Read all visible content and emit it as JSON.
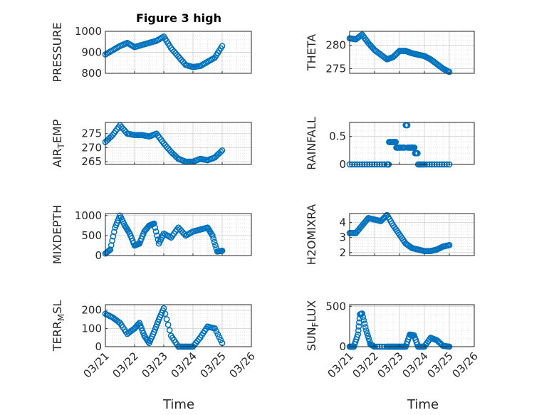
{
  "figure": {
    "title": "Figure 3 high",
    "date_tick_labels": [
      "03/21",
      "03/22",
      "03/23",
      "03/24",
      "03/25",
      "03/26"
    ],
    "time_label": "Time",
    "marker_color": "#0072BD",
    "grid_color": "#e0e0e0"
  },
  "chart_data": [
    {
      "type": "scatter",
      "ylabel": "PRESSURE",
      "xlim": [
        "2024-03-21",
        "2024-03-26"
      ],
      "ylim": [
        800,
        1000
      ],
      "yticks": [
        800,
        900,
        1000
      ],
      "xtick_labels_shown": false,
      "x": [
        "2024-03-21 00:00",
        "2024-03-21 06:00",
        "2024-03-21 12:00",
        "2024-03-21 18:00",
        "2024-03-22 00:00",
        "2024-03-22 06:00",
        "2024-03-22 12:00",
        "2024-03-22 18:00",
        "2024-03-23 00:00",
        "2024-03-23 06:00",
        "2024-03-23 12:00",
        "2024-03-23 18:00",
        "2024-03-24 00:00",
        "2024-03-24 06:00",
        "2024-03-24 12:00",
        "2024-03-24 18:00",
        "2024-03-25 00:00"
      ],
      "values": [
        890,
        910,
        930,
        945,
        925,
        935,
        945,
        955,
        975,
        920,
        880,
        840,
        830,
        835,
        855,
        875,
        930
      ]
    },
    {
      "type": "scatter",
      "ylabel": "THETA",
      "xlim": [
        "2024-03-21",
        "2024-03-26"
      ],
      "ylim": [
        274,
        283
      ],
      "yticks": [
        275,
        280
      ],
      "xtick_labels_shown": false,
      "x": [
        "2024-03-21 00:00",
        "2024-03-21 06:00",
        "2024-03-21 12:00",
        "2024-03-21 18:00",
        "2024-03-22 00:00",
        "2024-03-22 06:00",
        "2024-03-22 12:00",
        "2024-03-22 18:00",
        "2024-03-23 00:00",
        "2024-03-23 06:00",
        "2024-03-23 12:00",
        "2024-03-23 18:00",
        "2024-03-24 00:00",
        "2024-03-24 06:00",
        "2024-03-24 12:00",
        "2024-03-24 18:00",
        "2024-03-25 00:00"
      ],
      "values": [
        281.5,
        281.3,
        282.3,
        280.5,
        279,
        278,
        277,
        277.5,
        278.8,
        278.8,
        278.3,
        278,
        277.7,
        277,
        276,
        275,
        274.3
      ]
    },
    {
      "type": "scatter",
      "ylabel": "AIR_TEMP",
      "ylabel_sub": "T",
      "ylabel_parts": [
        "AIR",
        "EMP"
      ],
      "xlim": [
        "2024-03-21",
        "2024-03-26"
      ],
      "ylim": [
        264,
        279
      ],
      "yticks": [
        265,
        270,
        275
      ],
      "xtick_labels_shown": false,
      "x": [
        "2024-03-21 00:00",
        "2024-03-21 06:00",
        "2024-03-21 12:00",
        "2024-03-21 18:00",
        "2024-03-22 00:00",
        "2024-03-22 06:00",
        "2024-03-22 12:00",
        "2024-03-22 18:00",
        "2024-03-23 00:00",
        "2024-03-23 06:00",
        "2024-03-23 12:00",
        "2024-03-23 18:00",
        "2024-03-24 00:00",
        "2024-03-24 06:00",
        "2024-03-24 12:00",
        "2024-03-24 18:00",
        "2024-03-25 00:00"
      ],
      "values": [
        272,
        274.5,
        278,
        275,
        274.5,
        274.5,
        274,
        275,
        271.5,
        268.5,
        266,
        265,
        265,
        266,
        265.5,
        266.5,
        269
      ]
    },
    {
      "type": "scatter",
      "ylabel": "RAINFALL",
      "xlim": [
        "2024-03-21",
        "2024-03-26"
      ],
      "ylim": [
        0,
        0.75
      ],
      "yticks": [
        0,
        0.5
      ],
      "xtick_labels_shown": false,
      "x": [
        "2024-03-21 00:00",
        "2024-03-21 12:00",
        "2024-03-22 00:00",
        "2024-03-22 12:00",
        "2024-03-22 14:00",
        "2024-03-22 18:00",
        "2024-03-22 21:00",
        "2024-03-23 00:00",
        "2024-03-23 06:00",
        "2024-03-23 08:00",
        "2024-03-23 12:00",
        "2024-03-23 15:00",
        "2024-03-23 18:00",
        "2024-03-24 00:00",
        "2024-03-24 12:00",
        "2024-03-25 00:00"
      ],
      "values": [
        0,
        0,
        0,
        0,
        0.4,
        0.4,
        0.3,
        0.3,
        0.7,
        0.3,
        0.3,
        0.2,
        0,
        0,
        0,
        0
      ]
    },
    {
      "type": "scatter",
      "ylabel": "MIXDEPTH",
      "xlim": [
        "2024-03-21",
        "2024-03-26"
      ],
      "ylim": [
        0,
        1050
      ],
      "yticks": [
        0,
        500,
        1000
      ],
      "xtick_labels_shown": false,
      "x": [
        "2024-03-21 00:00",
        "2024-03-21 04:00",
        "2024-03-21 08:00",
        "2024-03-21 12:00",
        "2024-03-21 16:00",
        "2024-03-21 20:00",
        "2024-03-22 00:00",
        "2024-03-22 04:00",
        "2024-03-22 08:00",
        "2024-03-22 12:00",
        "2024-03-22 16:00",
        "2024-03-22 20:00",
        "2024-03-23 00:00",
        "2024-03-23 06:00",
        "2024-03-23 12:00",
        "2024-03-23 18:00",
        "2024-03-24 00:00",
        "2024-03-24 06:00",
        "2024-03-24 12:00",
        "2024-03-24 16:00",
        "2024-03-24 20:00",
        "2024-03-25 00:00"
      ],
      "values": [
        50,
        150,
        700,
        1000,
        750,
        550,
        250,
        300,
        600,
        750,
        800,
        300,
        550,
        450,
        700,
        500,
        600,
        650,
        700,
        500,
        100,
        120
      ]
    },
    {
      "type": "scatter",
      "ylabel": "H2OMIXRA",
      "xlim": [
        "2024-03-21",
        "2024-03-26"
      ],
      "ylim": [
        1.8,
        4.6
      ],
      "yticks": [
        2,
        3,
        4
      ],
      "xtick_labels_shown": false,
      "x": [
        "2024-03-21 00:00",
        "2024-03-21 06:00",
        "2024-03-21 12:00",
        "2024-03-21 18:00",
        "2024-03-22 00:00",
        "2024-03-22 06:00",
        "2024-03-22 12:00",
        "2024-03-22 18:00",
        "2024-03-23 00:00",
        "2024-03-23 06:00",
        "2024-03-23 12:00",
        "2024-03-23 18:00",
        "2024-03-24 00:00",
        "2024-03-24 06:00",
        "2024-03-24 12:00",
        "2024-03-24 18:00",
        "2024-03-25 00:00"
      ],
      "values": [
        3.3,
        3.3,
        3.8,
        4.3,
        4.2,
        4.1,
        4.5,
        3.8,
        3.2,
        2.6,
        2.3,
        2.2,
        2.1,
        2.1,
        2.2,
        2.4,
        2.5
      ]
    },
    {
      "type": "scatter",
      "ylabel": "TERR_MSL",
      "ylabel_sub": "M",
      "ylabel_parts": [
        "TERR",
        "SL"
      ],
      "xlim": [
        "2024-03-21",
        "2024-03-26"
      ],
      "ylim": [
        0,
        230
      ],
      "yticks": [
        0,
        100,
        200
      ],
      "xtick_labels_shown": true,
      "x": [
        "2024-03-21 00:00",
        "2024-03-21 06:00",
        "2024-03-21 12:00",
        "2024-03-21 18:00",
        "2024-03-22 00:00",
        "2024-03-22 04:00",
        "2024-03-22 08:00",
        "2024-03-22 12:00",
        "2024-03-22 16:00",
        "2024-03-22 20:00",
        "2024-03-23 00:00",
        "2024-03-23 06:00",
        "2024-03-23 12:00",
        "2024-03-23 18:00",
        "2024-03-24 00:00",
        "2024-03-24 06:00",
        "2024-03-24 12:00",
        "2024-03-24 18:00",
        "2024-03-25 00:00"
      ],
      "values": [
        180,
        160,
        130,
        70,
        100,
        130,
        60,
        20,
        80,
        150,
        210,
        60,
        0,
        0,
        0,
        50,
        110,
        100,
        20
      ]
    },
    {
      "type": "scatter",
      "ylabel": "SUN_FLUX",
      "ylabel_sub": "F",
      "ylabel_parts": [
        "SUN",
        "LUX"
      ],
      "xlim": [
        "2024-03-21",
        "2024-03-26"
      ],
      "ylim": [
        0,
        520
      ],
      "yticks": [
        0,
        500
      ],
      "xtick_labels_shown": true,
      "x": [
        "2024-03-21 00:00",
        "2024-03-21 04:00",
        "2024-03-21 08:00",
        "2024-03-21 10:00",
        "2024-03-21 12:00",
        "2024-03-21 16:00",
        "2024-03-21 20:00",
        "2024-03-22 00:00",
        "2024-03-22 12:00",
        "2024-03-22 18:00",
        "2024-03-23 00:00",
        "2024-03-23 06:00",
        "2024-03-23 10:00",
        "2024-03-23 14:00",
        "2024-03-23 18:00",
        "2024-03-24 00:00",
        "2024-03-24 06:00",
        "2024-03-24 12:00",
        "2024-03-24 18:00",
        "2024-03-25 00:00"
      ],
      "values": [
        0,
        0,
        150,
        400,
        410,
        200,
        30,
        0,
        0,
        0,
        0,
        0,
        150,
        140,
        0,
        0,
        110,
        80,
        10,
        0
      ]
    }
  ]
}
